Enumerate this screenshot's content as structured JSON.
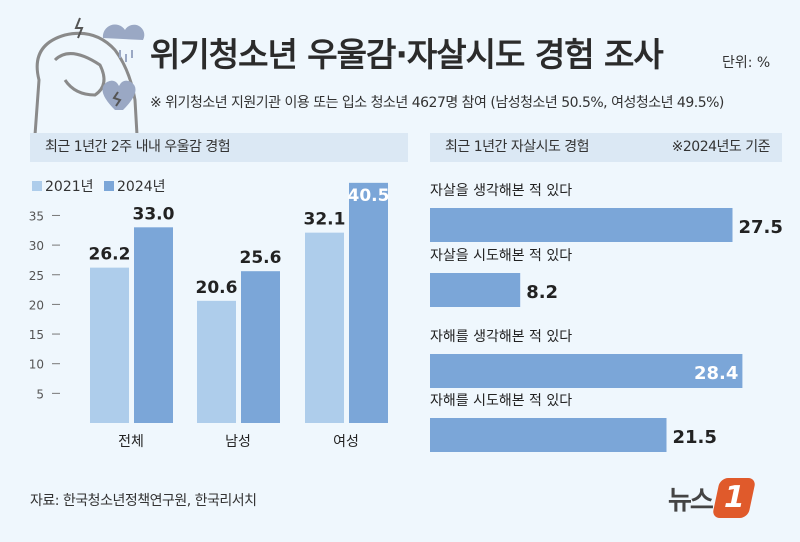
{
  "header": {
    "title": "위기청소년 우울감·자살시도 경험 조사",
    "unit": "단위: %",
    "note": "※ 위기청소년 지원기관 이용 또는 입소 청소년 4627명 참여 (남성청소년 50.5%, 여성청소년 49.5%)"
  },
  "colors": {
    "y2021": "#aecdeb",
    "y2024": "#7ba6d8",
    "bg": "#eff7fd",
    "section": "#dbe8f4",
    "brand": "#e05a2b"
  },
  "chart_data": [
    {
      "type": "bar",
      "title": "최근 1년간 2주 내내 우울감 경험",
      "categories": [
        "전체",
        "남성",
        "여성"
      ],
      "series": [
        {
          "name": "2021년",
          "values": [
            26.2,
            20.6,
            32.1
          ]
        },
        {
          "name": "2024년",
          "values": [
            33.0,
            25.6,
            40.5
          ]
        }
      ],
      "value_labels": [
        [
          "26.2",
          "20.6",
          "32.1"
        ],
        [
          "33.0",
          "25.6",
          "40.5"
        ]
      ],
      "yticks": [
        "5",
        "10",
        "15",
        "20",
        "25",
        "30",
        "35"
      ],
      "ylim": [
        0,
        42
      ],
      "legend": "top-left"
    },
    {
      "type": "bar",
      "orientation": "horizontal",
      "title": "최근 1년간 자살시도 경험",
      "note": "※2024년도 기준",
      "categories": [
        "자살을 생각해본 적 있다",
        "자살을 시도해본 적 있다",
        "자해를 생각해본 적 있다",
        "자해를 시도해본 적 있다"
      ],
      "values": [
        27.5,
        8.2,
        28.4,
        21.5
      ],
      "value_labels": [
        "27.5",
        "8.2",
        "28.4",
        "21.5"
      ],
      "xlim": [
        0,
        32
      ]
    }
  ],
  "footer": {
    "source": "자료: 한국청소년정책연구원, 한국리서치",
    "logo_text": "뉴스",
    "logo_num": "1"
  }
}
